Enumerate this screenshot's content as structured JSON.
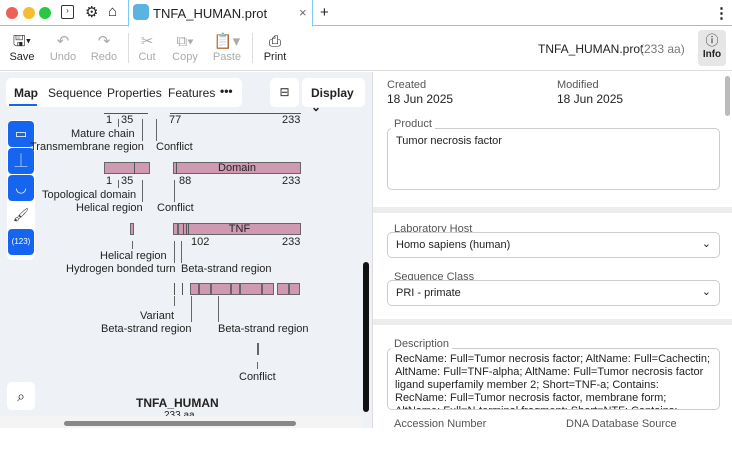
{
  "window": {
    "tab_title": "TNFA_HUMAN.prot",
    "new_tab": "+",
    "more": "⋮"
  },
  "toolbar": {
    "save": "Save",
    "undo": "Undo",
    "redo": "Redo",
    "cut": "Cut",
    "copy": "Copy",
    "paste": "Paste",
    "print": "Print",
    "file_name": "TNFA_HUMAN.prot",
    "length": "(233 aa)",
    "info": "Info"
  },
  "view_tabs": {
    "items": [
      "Map",
      "Sequence",
      "Properties",
      "Features"
    ],
    "more": "•••",
    "display": "Display",
    "active": "Map"
  },
  "side_tools": {
    "numbers": "(123)"
  },
  "map": {
    "row0": {
      "n1": "1",
      "n35": "35",
      "n77": "77",
      "n233": "233",
      "mature": "Mature chain",
      "transmembrane": "Transmembrane region",
      "conflict": "Conflict"
    },
    "row1": {
      "domain": "Domain",
      "n1": "1",
      "n35": "35",
      "n88": "88",
      "n233": "233",
      "topological": "Topological domain",
      "helical": "Helical region",
      "conflict": "Conflict"
    },
    "row2": {
      "tnf": "TNF",
      "n102": "102",
      "n233": "233",
      "helical": "Helical region",
      "hbond": "Hydrogen bonded turn",
      "beta": "Beta-strand region"
    },
    "row3": {
      "variant": "Variant",
      "beta1": "Beta-strand region",
      "beta2": "Beta-strand region"
    },
    "row4": {
      "conflict": "Conflict"
    },
    "title": "TNFA_HUMAN",
    "subtitle": "233 aa"
  },
  "info": {
    "created_label": "Created",
    "created": "18 Jun 2025",
    "modified_label": "Modified",
    "modified": "18 Jun 2025",
    "product_label": "Product",
    "product": "Tumor necrosis factor",
    "host_label": "Laboratory Host",
    "host": "Homo sapiens (human)",
    "class_label": "Sequence Class",
    "class": "PRI - primate",
    "desc_label": "Description",
    "description": "RecName: Full=Tumor necrosis factor; AltName: Full=Cachectin; AltName: Full=TNF-alpha; AltName: Full=Tumor necrosis factor ligand superfamily member 2; Short=TNF-a; Contains: RecName: Full=Tumor necrosis factor, membrane form; AltName: Full=N-terminal fragment; Short=NTF; Contains: RecName:",
    "accession_label": "Accession Number",
    "dna_source_label": "DNA Database Source"
  },
  "colors": {
    "accent": "#1565f0",
    "feature": "#cf9ab1"
  }
}
